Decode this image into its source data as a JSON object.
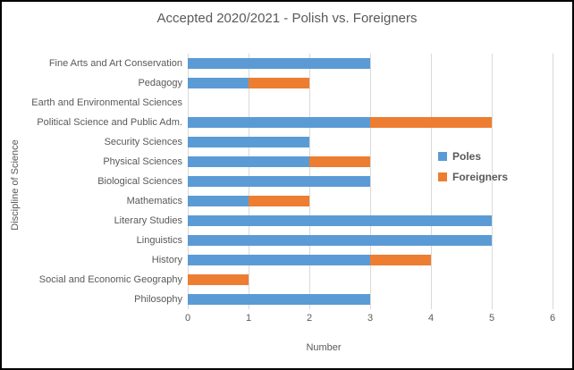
{
  "window": {
    "background": "#ffffff",
    "border_color": "#000000"
  },
  "colors": {
    "poles_blue": "#5B9BD5",
    "foreigners_orange": "#ED7D31",
    "gridline_gray": "#D9D9D9",
    "text_gray": "#595959"
  },
  "chart_data": {
    "type": "bar",
    "orientation": "horizontal",
    "stacked": true,
    "title": "Accepted 2020/2021 - Polish vs. Foreigners",
    "xlabel": "Number",
    "ylabel": "Discipline of Science",
    "xlim": [
      0,
      6
    ],
    "xticks": [
      0,
      1,
      2,
      3,
      4,
      5,
      6
    ],
    "grid": true,
    "legend_position": "right-overlay",
    "categories": [
      "Fine Arts and Art Conservation",
      "Pedagogy",
      "Earth and Environmental Sciences",
      "Political Science and Public Adm.",
      "Security Sciences",
      "Physical Sciences",
      "Biological Sciences",
      "Mathematics",
      "Literary Studies",
      "Linguistics",
      "History",
      "Social and Economic Geography",
      "Philosophy"
    ],
    "series": [
      {
        "name": "Poles",
        "color": "#5B9BD5",
        "values": [
          3,
          1,
          0,
          3,
          2,
          2,
          3,
          1,
          5,
          5,
          3,
          0,
          3
        ]
      },
      {
        "name": "Foreigners",
        "color": "#ED7D31",
        "values": [
          0,
          1,
          0,
          2,
          0,
          1,
          0,
          1,
          0,
          0,
          1,
          1,
          0
        ]
      }
    ]
  }
}
